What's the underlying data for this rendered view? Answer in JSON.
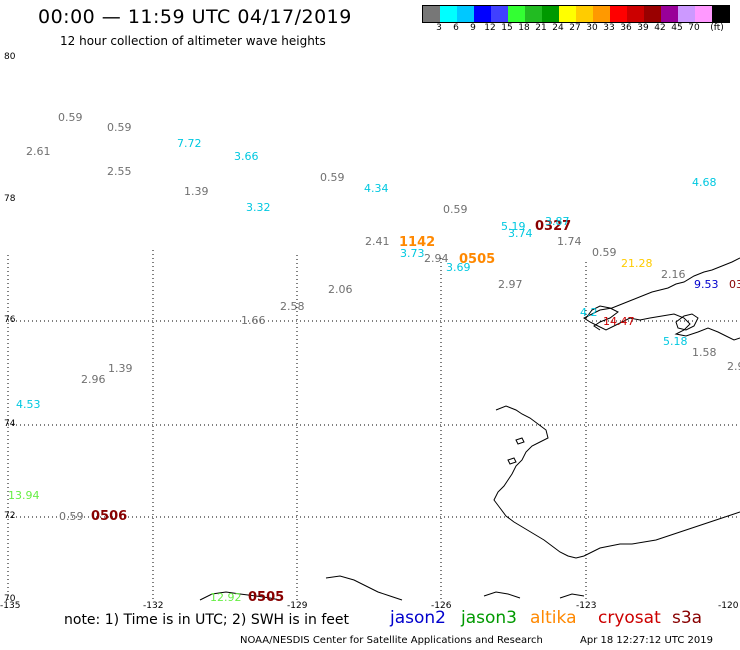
{
  "header": {
    "title": "00:00 — 11:59 UTC 04/17/2019",
    "subtitle": "12 hour collection of altimeter wave heights"
  },
  "colorbar": {
    "colors": [
      "#777777",
      "#00ffff",
      "#00c8ff",
      "#0000ff",
      "#4040ff",
      "#33ff33",
      "#22bb22",
      "#009900",
      "#ffff00",
      "#ffcc00",
      "#ff9900",
      "#ff0000",
      "#cc0000",
      "#990000",
      "#990099",
      "#cc99ff",
      "#ff99ff",
      "#000000"
    ],
    "labels": [
      "3",
      "6",
      "9",
      "12",
      "15",
      "18",
      "21",
      "24",
      "27",
      "30",
      "33",
      "36",
      "39",
      "42",
      "45",
      "70",
      "(ft)"
    ]
  },
  "latitude_labels": [
    "80",
    "78",
    "76",
    "74",
    "72",
    "70"
  ],
  "longitude_labels": [
    "-135",
    "-132",
    "-129",
    "-126",
    "-123",
    "-120"
  ],
  "wave_heights": [
    {
      "text": "0.59",
      "color": "#707070"
    },
    {
      "text": "0.59",
      "color": "#707070"
    },
    {
      "text": "2.61",
      "color": "#707070"
    },
    {
      "text": "7.72",
      "color": "#00c8e0"
    },
    {
      "text": "3.66",
      "color": "#00c8e0"
    },
    {
      "text": "2.55",
      "color": "#707070"
    },
    {
      "text": "1.39",
      "color": "#707070"
    },
    {
      "text": "0.59",
      "color": "#707070"
    },
    {
      "text": "4.34",
      "color": "#00c8e0"
    },
    {
      "text": "3.32",
      "color": "#00c8e0"
    },
    {
      "text": "0.59",
      "color": "#707070"
    },
    {
      "text": "5.19",
      "color": "#00c8e0"
    },
    {
      "text": "3.74",
      "color": "#00c8e0"
    },
    {
      "text": "0327",
      "color": "#880000"
    },
    {
      "text": "3.87",
      "color": "#00c8e0"
    },
    {
      "text": "2.41",
      "color": "#707070"
    },
    {
      "text": "1142",
      "color": "#ff8800"
    },
    {
      "text": "1.74",
      "color": "#707070"
    },
    {
      "text": "3.73",
      "color": "#00c8e0"
    },
    {
      "text": "2.94",
      "color": "#707070"
    },
    {
      "text": "0505",
      "color": "#ff8800"
    },
    {
      "text": "3.69",
      "color": "#00c8e0"
    },
    {
      "text": "0.59",
      "color": "#707070"
    },
    {
      "text": "21.28",
      "color": "#ffcc00"
    },
    {
      "text": "4.68",
      "color": "#00c8e0"
    },
    {
      "text": "2.16",
      "color": "#707070"
    },
    {
      "text": "9.53",
      "color": "#0000cc"
    },
    {
      "text": "03",
      "color": "#880000"
    },
    {
      "text": "2.06",
      "color": "#707070"
    },
    {
      "text": "2.97",
      "color": "#707070"
    },
    {
      "text": "2.58",
      "color": "#707070"
    },
    {
      "text": "1.66",
      "color": "#707070"
    },
    {
      "text": "4.2",
      "color": "#00c8e0"
    },
    {
      "text": "14.47",
      "color": "#cc0000"
    },
    {
      "text": "5.18",
      "color": "#00c8e0"
    },
    {
      "text": "1.58",
      "color": "#707070"
    },
    {
      "text": "2.9",
      "color": "#707070"
    },
    {
      "text": "1.39",
      "color": "#707070"
    },
    {
      "text": "2.96",
      "color": "#707070"
    },
    {
      "text": "4.53",
      "color": "#00c8e0"
    },
    {
      "text": "13.94",
      "color": "#66ee44"
    },
    {
      "text": "0.59",
      "color": "#707070"
    },
    {
      "text": "0506",
      "color": "#880000"
    },
    {
      "text": "12.92",
      "color": "#66ee44"
    },
    {
      "text": "0505",
      "color": "#880000"
    }
  ],
  "footer": {
    "note": "note: 1) Time is in UTC; 2) SWH is in feet",
    "satellites": [
      {
        "name": "jason2",
        "color": "#0000cc"
      },
      {
        "name": "jason3",
        "color": "#009900"
      },
      {
        "name": "altika",
        "color": "#ff8800"
      },
      {
        "name": "cryosat",
        "color": "#cc0000"
      },
      {
        "name": "s3a",
        "color": "#880000"
      }
    ],
    "credit": "NOAA/NESDIS Center for Satellite Applications and Research",
    "timestamp": "Apr 18 12:27:12 UTC 2019"
  }
}
